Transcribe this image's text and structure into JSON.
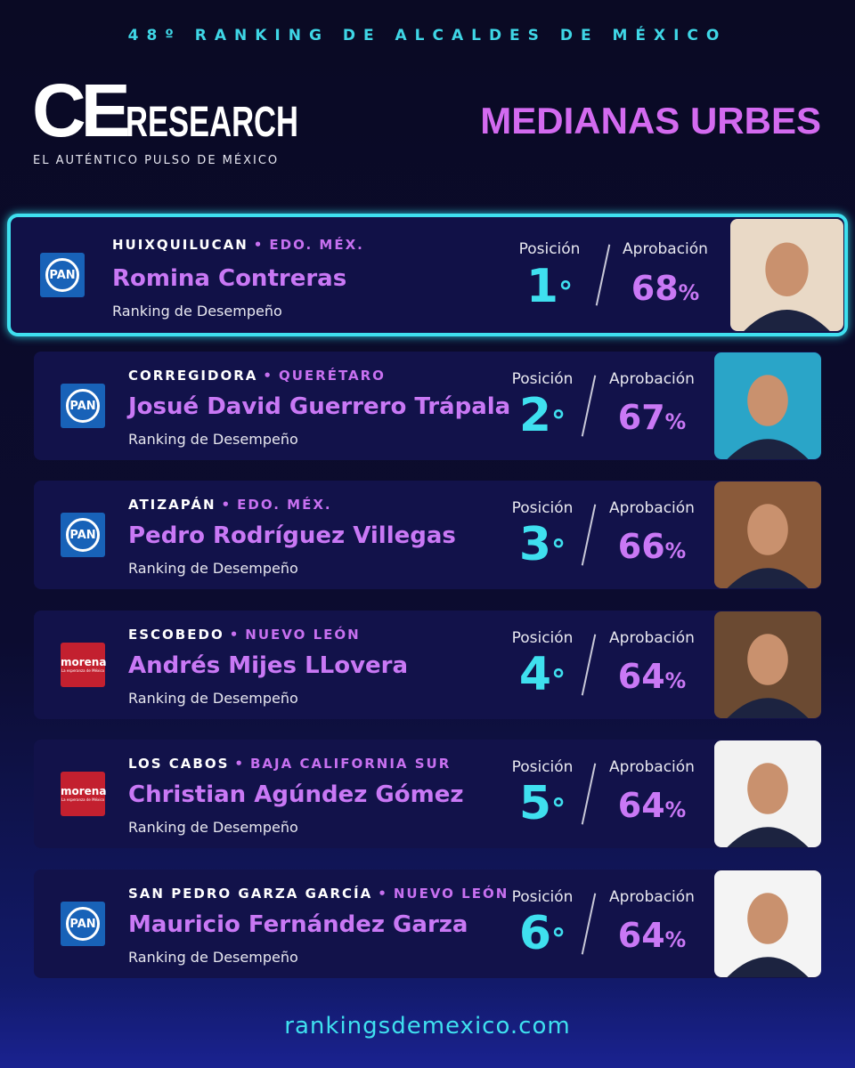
{
  "header": {
    "kicker": "48º RANKING DE ALCALDES DE MÉXICO",
    "logo_prefix": "CE",
    "logo_text": "RESEARCH",
    "tagline": "EL AUTÉNTICO PULSO DE MÉXICO",
    "title": "MEDIANAS URBES"
  },
  "entries": [
    {
      "party": "PAN",
      "city": "HUIXQUILUCAN",
      "state": "EDO. MÉX.",
      "name": "Romina Contreras",
      "subtitle": "Ranking de Desempeño",
      "position_label": "Posición",
      "rank": "1°",
      "approval_label": "Aprobación",
      "approval": "68%"
    },
    {
      "party": "PAN",
      "city": "CORREGIDORA",
      "state": "QUERÉTARO",
      "name": "Josué David Guerrero Trápala",
      "subtitle": "Ranking de Desempeño",
      "position_label": "Posición",
      "rank": "2°",
      "approval_label": "Aprobación",
      "approval": "67%"
    },
    {
      "party": "PAN",
      "city": "ATIZAPÁN",
      "state": "EDO. MÉX.",
      "name": "Pedro Rodríguez Villegas",
      "subtitle": "Ranking de Desempeño",
      "position_label": "Posición",
      "rank": "3°",
      "approval_label": "Aprobación",
      "approval": "66%"
    },
    {
      "party": "morena",
      "party_tagline": "La esperanza de México",
      "city": "ESCOBEDO",
      "state": "NUEVO LEÓN",
      "name": "Andrés Mijes LLovera",
      "subtitle": "Ranking de Desempeño",
      "position_label": "Posición",
      "rank": "4°",
      "approval_label": "Aprobación",
      "approval": "64%"
    },
    {
      "party": "morena",
      "party_tagline": "La esperanza de México",
      "city": "LOS CABOS",
      "state": "BAJA CALIFORNIA SUR",
      "name": "Christian Agúndez Gómez",
      "subtitle": "Ranking de Desempeño",
      "position_label": "Posición",
      "rank": "5°",
      "approval_label": "Aprobación",
      "approval": "64%"
    },
    {
      "party": "PAN",
      "city": "SAN PEDRO GARZA GARCÍA",
      "state": "NUEVO LEÓN",
      "name": "Mauricio Fernández Garza",
      "subtitle": "Ranking de Desempeño",
      "position_label": "Posición",
      "rank": "6°",
      "approval_label": "Aprobación",
      "approval": "64%"
    }
  ],
  "footer": {
    "url": "rankingsdemexico.com"
  }
}
